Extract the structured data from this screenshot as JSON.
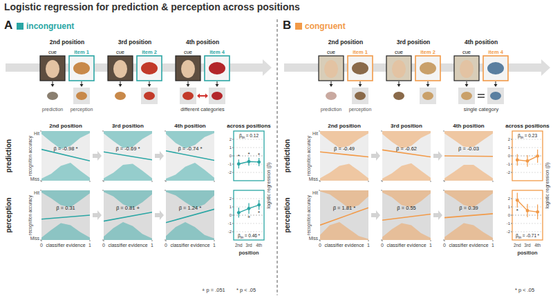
{
  "title": "Logistic regression for prediction & perception across positions",
  "panels": [
    {
      "label": "A",
      "name": "incongruent",
      "color": "#2aa6a4",
      "rows": [
        "prediction",
        "perception"
      ],
      "trials": [
        {
          "position": "2nd position",
          "cue": "cue",
          "item": "item 1"
        },
        {
          "position": "3rd position",
          "cue": "cue",
          "item": "item 2"
        },
        {
          "position": "4th position",
          "cue": "cue",
          "item": "item 4"
        }
      ],
      "trial_notes": [
        "prediction",
        "perception"
      ],
      "relation": "different categories",
      "footnote": [
        "+ p = .051",
        "* p < .05"
      ]
    },
    {
      "label": "B",
      "name": "congruent",
      "color": "#f29a48",
      "rows": [
        "prediction",
        "perception"
      ],
      "trials": [
        {
          "position": "2nd position",
          "cue": "cue",
          "item": "item 1"
        },
        {
          "position": "3rd position",
          "cue": "cue",
          "item": "item 2"
        },
        {
          "position": "4th position",
          "cue": "cue",
          "item": "item 4"
        }
      ],
      "trial_notes": [
        "prediction",
        "perception"
      ],
      "relation": "single category",
      "footnote": [
        "* p < .05"
      ]
    }
  ],
  "chart_data": [
    {
      "type": "line",
      "title": "2nd position",
      "x": [
        0,
        1
      ],
      "values": [
        0.63,
        0.4
      ],
      "xlim": [
        0,
        1
      ],
      "ylim": [
        0,
        1
      ],
      "xticks": [
        0,
        1
      ],
      "yticks": [
        {
          "value": 0,
          "label": "Miss"
        },
        {
          "value": 1,
          "label": "Hit"
        }
      ],
      "tick_labels": "y",
      "ylabel": "recognition accuracy",
      "annotation": "β = -0.98",
      "significance": "*",
      "color": "#2aa6a4",
      "density_x": [
        0,
        0.2,
        0.4,
        0.6,
        0.8,
        1
      ],
      "hit_density": [
        0.06,
        0.22,
        0.36,
        0.3,
        0.14,
        0.04
      ],
      "miss_density": [
        0.04,
        0.14,
        0.3,
        0.36,
        0.2,
        0.06
      ]
    },
    {
      "type": "line",
      "title": "3rd position",
      "x": [
        0,
        1
      ],
      "values": [
        0.58,
        0.42
      ],
      "xlim": [
        0,
        1
      ],
      "ylim": [
        0,
        1
      ],
      "xticks": [
        0,
        1
      ],
      "yticks": [
        {
          "value": 0,
          "label": "Miss"
        },
        {
          "value": 1,
          "label": "Hit"
        }
      ],
      "tick_labels": false,
      "annotation": "β = -0.69",
      "significance": "*",
      "color": "#2aa6a4",
      "density_x": [
        0,
        0.2,
        0.4,
        0.6,
        0.8,
        1
      ],
      "hit_density": [
        0.05,
        0.2,
        0.34,
        0.32,
        0.16,
        0.05
      ],
      "miss_density": [
        0.05,
        0.16,
        0.32,
        0.34,
        0.2,
        0.05
      ]
    },
    {
      "type": "line",
      "title": "4th position",
      "x": [
        0,
        1
      ],
      "values": [
        0.6,
        0.41
      ],
      "xlim": [
        0,
        1
      ],
      "ylim": [
        0,
        1
      ],
      "xticks": [
        0,
        1
      ],
      "yticks": [
        {
          "value": 0,
          "label": "Miss"
        },
        {
          "value": 1,
          "label": "Hit"
        }
      ],
      "tick_labels": false,
      "annotation": "β = -0.74",
      "significance": "*",
      "color": "#2aa6a4",
      "density_x": [
        0,
        0.2,
        0.4,
        0.6,
        0.8,
        1
      ],
      "hit_density": [
        0.06,
        0.24,
        0.35,
        0.28,
        0.12,
        0.04
      ],
      "miss_density": [
        0.04,
        0.12,
        0.28,
        0.36,
        0.22,
        0.06
      ]
    },
    {
      "type": "line",
      "x": [
        0,
        1
      ],
      "values": [
        0.42,
        0.5
      ],
      "xlim": [
        0,
        1
      ],
      "ylim": [
        0,
        1
      ],
      "xticks": [
        0,
        1
      ],
      "yticks": [
        {
          "value": 0,
          "label": "Miss"
        },
        {
          "value": 1,
          "label": "Hit"
        }
      ],
      "tick_labels": true,
      "ylabel": "recognition accuracy",
      "xlabel": "classifier evidence",
      "annotation": "β = 0.31",
      "color": "#2aa6a4",
      "density_x": [
        0,
        0.2,
        0.4,
        0.6,
        0.8,
        1
      ],
      "hit_density": [
        0.04,
        0.16,
        0.3,
        0.34,
        0.2,
        0.06
      ],
      "miss_density": [
        0.05,
        0.2,
        0.34,
        0.3,
        0.16,
        0.05
      ]
    },
    {
      "type": "line",
      "x": [
        0,
        1
      ],
      "values": [
        0.38,
        0.56
      ],
      "xlim": [
        0,
        1
      ],
      "ylim": [
        0,
        1
      ],
      "xticks": [
        0,
        1
      ],
      "yticks": [
        {
          "value": 0,
          "label": "Miss"
        },
        {
          "value": 1,
          "label": "Hit"
        }
      ],
      "tick_labels": "x",
      "xlabel": "classifier evidence",
      "annotation": "β = 0.81",
      "significance": "+",
      "color": "#2aa6a4",
      "density_x": [
        0,
        0.2,
        0.4,
        0.6,
        0.8,
        1
      ],
      "hit_density": [
        0.03,
        0.12,
        0.28,
        0.36,
        0.24,
        0.08
      ],
      "miss_density": [
        0.07,
        0.24,
        0.36,
        0.28,
        0.12,
        0.03
      ]
    },
    {
      "type": "line",
      "x": [
        0,
        1
      ],
      "values": [
        0.35,
        0.62
      ],
      "xlim": [
        0,
        1
      ],
      "ylim": [
        0,
        1
      ],
      "xticks": [
        0,
        1
      ],
      "yticks": [
        {
          "value": 0,
          "label": "Miss"
        },
        {
          "value": 1,
          "label": "Hit"
        }
      ],
      "tick_labels": "x",
      "xlabel": "classifier evidence",
      "annotation": "β = 1.24",
      "significance": "*",
      "color": "#2aa6a4",
      "density_x": [
        0,
        0.2,
        0.4,
        0.6,
        0.8,
        1
      ],
      "hit_density": [
        0.03,
        0.1,
        0.24,
        0.36,
        0.28,
        0.1
      ],
      "miss_density": [
        0.08,
        0.26,
        0.36,
        0.26,
        0.1,
        0.03
      ]
    },
    {
      "type": "line",
      "title": "across positions",
      "categories": [
        "2nd",
        "3rd",
        "4th"
      ],
      "values": [
        -0.98,
        -0.69,
        -0.74
      ],
      "errors": [
        0.55,
        0.5,
        0.5
      ],
      "point_significance": [
        "*",
        "*",
        "*"
      ],
      "ylim": [
        -3,
        3
      ],
      "yticks": [
        -2,
        -1,
        0,
        1,
        2
      ],
      "grid": true,
      "marker": "circle",
      "tick_labels": "y",
      "annotation": "β",
      "annotation_subscript": "lin",
      "annotation_value": "= 0.12",
      "color": "#2aa6a4"
    },
    {
      "type": "line",
      "categories": [
        "2nd",
        "3rd",
        "4th"
      ],
      "values": [
        0.31,
        0.81,
        1.24
      ],
      "errors": [
        0.6,
        0.65,
        0.6
      ],
      "point_significance": [
        null,
        "+",
        "*"
      ],
      "ylim": [
        -3,
        3
      ],
      "yticks": [
        -2,
        -1,
        0,
        1,
        2
      ],
      "grid": true,
      "marker": "circle",
      "tick_labels": true,
      "ylabel": "logistic regression (β)",
      "xlabel": "position",
      "annotation": "β",
      "annotation_subscript": "lin",
      "annotation_value": "= 0.46",
      "significance": "*",
      "color": "#2aa6a4"
    },
    {
      "type": "line",
      "title": "2nd position",
      "x": [
        0,
        1
      ],
      "values": [
        0.58,
        0.48
      ],
      "xlim": [
        0,
        1
      ],
      "ylim": [
        0,
        1
      ],
      "xticks": [
        0,
        1
      ],
      "yticks": [
        {
          "value": 0,
          "label": "Miss"
        },
        {
          "value": 1,
          "label": "Hit"
        }
      ],
      "tick_labels": "y",
      "ylabel": "recognition accuracy",
      "annotation": "β = -0.49",
      "color": "#f29a48",
      "density_x": [
        0,
        0.2,
        0.4,
        0.6,
        0.8,
        1
      ],
      "hit_density": [
        0.05,
        0.2,
        0.34,
        0.3,
        0.16,
        0.05
      ],
      "miss_density": [
        0.05,
        0.16,
        0.3,
        0.34,
        0.2,
        0.05
      ]
    },
    {
      "type": "line",
      "title": "3rd position",
      "x": [
        0,
        1
      ],
      "values": [
        0.62,
        0.48
      ],
      "xlim": [
        0,
        1
      ],
      "ylim": [
        0,
        1
      ],
      "xticks": [
        0,
        1
      ],
      "yticks": [
        {
          "value": 0,
          "label": "Miss"
        },
        {
          "value": 1,
          "label": "Hit"
        }
      ],
      "tick_labels": false,
      "annotation": "β = -0.62",
      "color": "#f29a48",
      "density_x": [
        0,
        0.2,
        0.4,
        0.6,
        0.8,
        1
      ],
      "hit_density": [
        0.06,
        0.22,
        0.35,
        0.3,
        0.14,
        0.04
      ],
      "miss_density": [
        0.04,
        0.15,
        0.3,
        0.35,
        0.2,
        0.06
      ]
    },
    {
      "type": "line",
      "title": "4th position",
      "x": [
        0,
        1
      ],
      "values": [
        0.5,
        0.49
      ],
      "xlim": [
        0,
        1
      ],
      "ylim": [
        0,
        1
      ],
      "xticks": [
        0,
        1
      ],
      "yticks": [
        {
          "value": 0,
          "label": "Miss"
        },
        {
          "value": 1,
          "label": "Hit"
        }
      ],
      "tick_labels": false,
      "annotation": "β = -0.03",
      "color": "#f29a48",
      "density_x": [
        0,
        0.2,
        0.4,
        0.6,
        0.8,
        1
      ],
      "hit_density": [
        0.05,
        0.18,
        0.32,
        0.32,
        0.18,
        0.05
      ],
      "miss_density": [
        0.05,
        0.18,
        0.32,
        0.32,
        0.18,
        0.05
      ]
    },
    {
      "type": "line",
      "x": [
        0,
        1
      ],
      "values": [
        0.3,
        0.65
      ],
      "xlim": [
        0,
        1
      ],
      "ylim": [
        0,
        1
      ],
      "xticks": [
        0,
        1
      ],
      "yticks": [
        {
          "value": 0,
          "label": "Miss"
        },
        {
          "value": 1,
          "label": "Hit"
        }
      ],
      "tick_labels": true,
      "ylabel": "recognition accuracy",
      "xlabel": "classifier evidence",
      "annotation": "β = 1.81",
      "significance": "*",
      "color": "#f29a48",
      "density_x": [
        0,
        0.2,
        0.4,
        0.6,
        0.8,
        1
      ],
      "hit_density": [
        0.02,
        0.08,
        0.22,
        0.36,
        0.3,
        0.12
      ],
      "miss_density": [
        0.1,
        0.3,
        0.36,
        0.22,
        0.08,
        0.02
      ]
    },
    {
      "type": "line",
      "x": [
        0,
        1
      ],
      "values": [
        0.4,
        0.52
      ],
      "xlim": [
        0,
        1
      ],
      "ylim": [
        0,
        1
      ],
      "xticks": [
        0,
        1
      ],
      "yticks": [
        {
          "value": 0,
          "label": "Miss"
        },
        {
          "value": 1,
          "label": "Hit"
        }
      ],
      "tick_labels": "x",
      "xlabel": "classifier evidence",
      "annotation": "β = 0.55",
      "color": "#f29a48",
      "density_x": [
        0,
        0.2,
        0.4,
        0.6,
        0.8,
        1
      ],
      "hit_density": [
        0.04,
        0.14,
        0.3,
        0.34,
        0.22,
        0.06
      ],
      "miss_density": [
        0.06,
        0.22,
        0.34,
        0.3,
        0.14,
        0.04
      ]
    },
    {
      "type": "line",
      "x": [
        0,
        1
      ],
      "values": [
        0.45,
        0.53
      ],
      "xlim": [
        0,
        1
      ],
      "ylim": [
        0,
        1
      ],
      "xticks": [
        0,
        1
      ],
      "yticks": [
        {
          "value": 0,
          "label": "Miss"
        },
        {
          "value": 1,
          "label": "Hit"
        }
      ],
      "tick_labels": "x",
      "xlabel": "classifier evidence",
      "annotation": "β = 0.39",
      "color": "#f29a48",
      "density_x": [
        0,
        0.2,
        0.4,
        0.6,
        0.8,
        1
      ],
      "hit_density": [
        0.04,
        0.16,
        0.3,
        0.34,
        0.2,
        0.06
      ],
      "miss_density": [
        0.06,
        0.2,
        0.34,
        0.3,
        0.16,
        0.04
      ]
    },
    {
      "type": "line",
      "title": "across positions",
      "categories": [
        "2nd",
        "3rd",
        "4th"
      ],
      "values": [
        -0.49,
        -0.62,
        -0.03
      ],
      "errors": [
        0.7,
        0.7,
        0.8
      ],
      "ylim": [
        -3,
        3
      ],
      "yticks": [
        -2,
        -1,
        0,
        1,
        2
      ],
      "grid": true,
      "marker": "circle",
      "tick_labels": "y",
      "annotation": "β",
      "annotation_subscript": "lin",
      "annotation_value": "= 0.23",
      "color": "#f29a48"
    },
    {
      "type": "line",
      "categories": [
        "2nd",
        "3rd",
        "4th"
      ],
      "values": [
        1.81,
        0.55,
        0.39
      ],
      "errors": [
        0.9,
        0.8,
        0.9
      ],
      "point_significance": [
        "*",
        null,
        null
      ],
      "ylim": [
        -3,
        3
      ],
      "yticks": [
        -2,
        -1,
        0,
        1,
        2
      ],
      "grid": true,
      "marker": "circle",
      "tick_labels": true,
      "ylabel": "logistic regression (β)",
      "xlabel": "position",
      "annotation": "β",
      "annotation_subscript": "lin",
      "annotation_value": "= -0.71",
      "significance": "*",
      "color": "#f29a48"
    }
  ]
}
